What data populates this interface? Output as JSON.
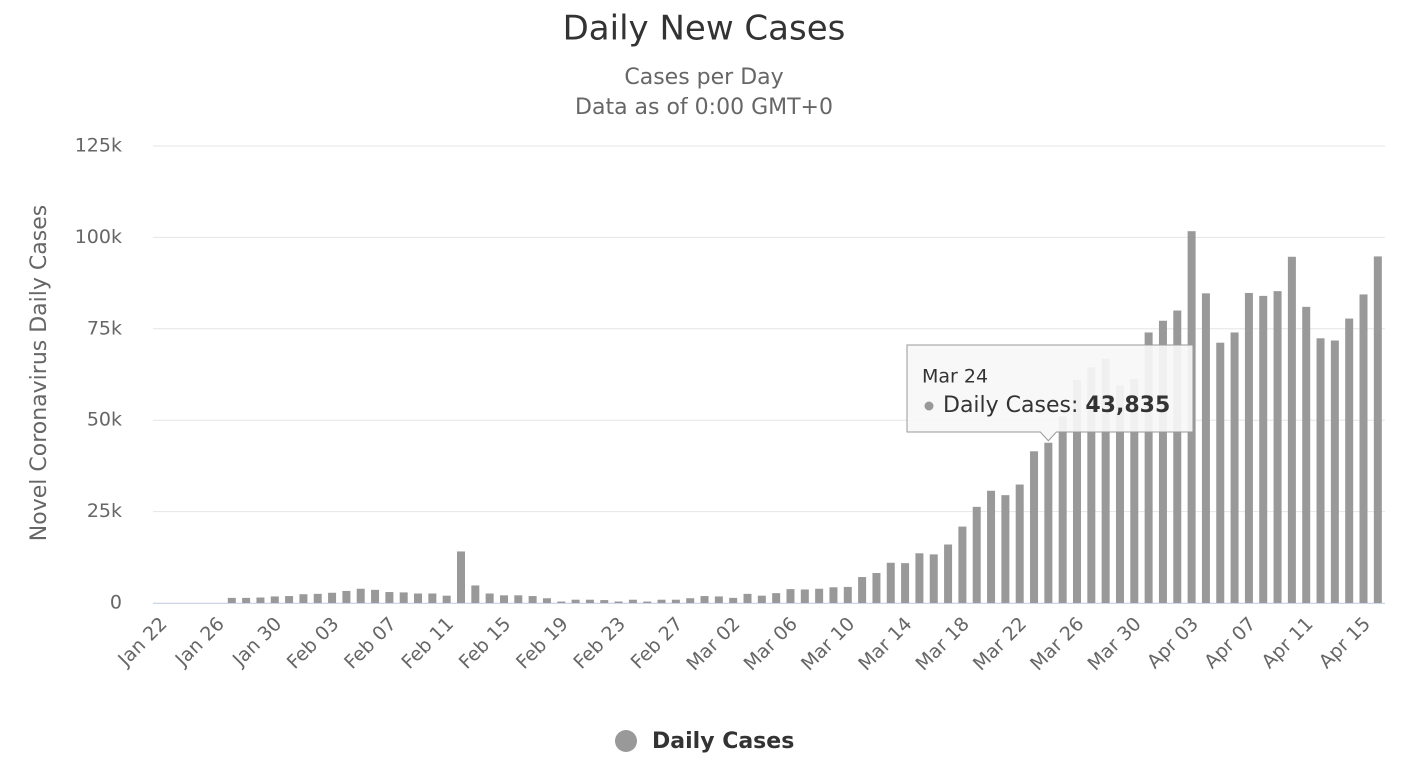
{
  "chart_data": {
    "type": "bar",
    "title": "Daily New Cases",
    "subtitle": [
      "Cases per Day",
      "Data as of 0:00 GMT+0"
    ],
    "y_label": "Novel Coronavirus Daily Cases",
    "categories": [
      "Jan 22",
      null,
      null,
      null,
      "Jan 26",
      null,
      null,
      null,
      "Jan 30",
      null,
      null,
      null,
      "Feb 03",
      null,
      null,
      null,
      "Feb 07",
      null,
      null,
      null,
      "Feb 11",
      null,
      null,
      null,
      "Feb 15",
      null,
      null,
      null,
      "Feb 19",
      null,
      null,
      null,
      "Feb 23",
      null,
      null,
      null,
      "Feb 27",
      null,
      null,
      null,
      "Mar 02",
      null,
      null,
      null,
      "Mar 06",
      null,
      null,
      null,
      "Mar 10",
      null,
      null,
      null,
      "Mar 14",
      null,
      null,
      null,
      "Mar 18",
      null,
      null,
      null,
      "Mar 22",
      null,
      null,
      null,
      "Mar 26",
      null,
      null,
      null,
      "Mar 30",
      null,
      null,
      null,
      "Apr 03",
      null,
      null,
      null,
      "Apr 07",
      null,
      null,
      null,
      "Apr 11",
      null,
      null,
      null,
      "Apr 15",
      null
    ],
    "series": [
      {
        "name": "Daily Cases",
        "color": "#999999",
        "values": [
          0,
          0,
          0,
          0,
          0,
          1400,
          1400,
          1500,
          1800,
          1900,
          2400,
          2500,
          2800,
          3300,
          3900,
          3600,
          3000,
          2900,
          2600,
          2600,
          2000,
          14100,
          4800,
          2600,
          2100,
          2100,
          1900,
          1300,
          400,
          900,
          900,
          800,
          400,
          900,
          400,
          900,
          900,
          1300,
          1900,
          1800,
          1400,
          2500,
          2000,
          2700,
          3800,
          3700,
          3900,
          4300,
          4400,
          7100,
          8200,
          11000,
          10900,
          13600,
          13300,
          16000,
          20900,
          26300,
          30700,
          29500,
          32400,
          41500,
          43835,
          51000,
          61000,
          64500,
          66800,
          59500,
          61300,
          74000,
          77200,
          80000,
          101700,
          84700,
          71200,
          74000,
          84800,
          84000,
          85300,
          94700,
          81000,
          72400,
          71800,
          77800,
          84400,
          94800
        ]
      }
    ],
    "ylim": [
      0,
      125000
    ],
    "yticks": [
      0,
      {
        "value": 25000,
        "label": "25k"
      },
      {
        "value": 50000,
        "label": "50k"
      },
      {
        "value": 75000,
        "label": "75k"
      },
      {
        "value": 100000,
        "label": "100k"
      },
      {
        "value": 125000,
        "label": "125k"
      }
    ],
    "grid": true,
    "tooltip": {
      "category": "Mar 24",
      "label": "Daily Cases:",
      "value": 43835,
      "value_label": "43,835"
    }
  }
}
